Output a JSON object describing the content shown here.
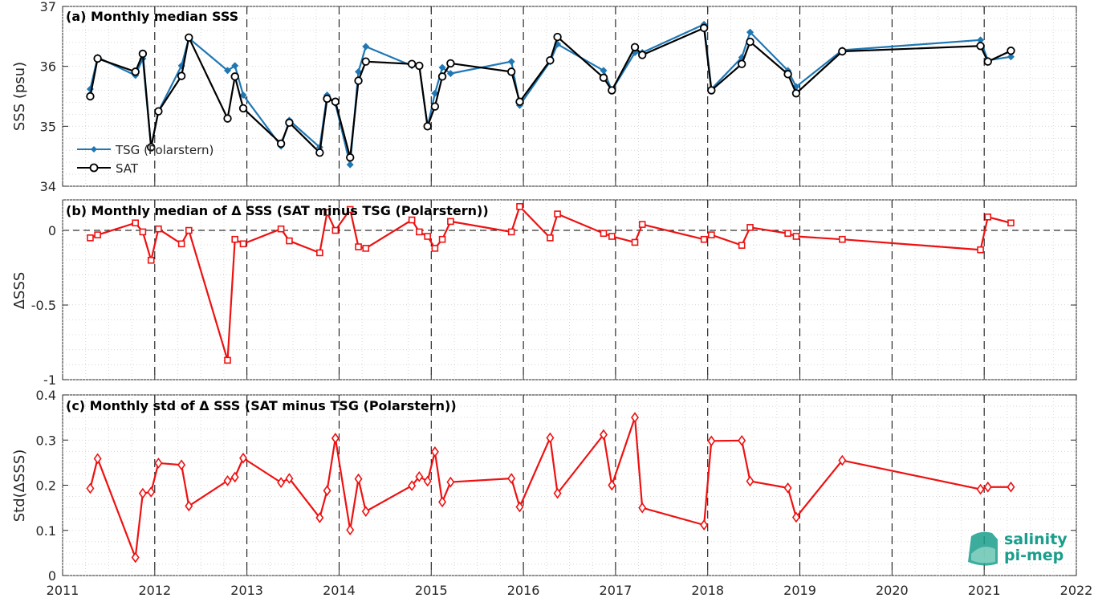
{
  "chart_data": [
    {
      "type": "line",
      "title": "(a) Monthly median SSS",
      "ylabel": "SSS (psu)",
      "xlim": [
        2011,
        2022
      ],
      "ylim": [
        34,
        37
      ],
      "yticks": [
        "34",
        "35",
        "36",
        "37"
      ],
      "grid": true,
      "legend_position": "bottom-left",
      "series": [
        {
          "name": "TSG (Polarstern)",
          "color": "#1f77b4",
          "marker": "diamond",
          "x": [
            2011.3,
            2011.38,
            2011.79,
            2011.87,
            2011.96,
            2012.04,
            2012.29,
            2012.37,
            2012.79,
            2012.87,
            2012.96,
            2013.37,
            2013.46,
            2013.79,
            2013.87,
            2013.96,
            2014.12,
            2014.21,
            2014.29,
            2014.79,
            2014.87,
            2014.96,
            2015.04,
            2015.12,
            2015.21,
            2015.87,
            2015.96,
            2016.29,
            2016.37,
            2016.87,
            2016.96,
            2017.21,
            2017.29,
            2017.96,
            2018.04,
            2018.37,
            2018.46,
            2018.87,
            2018.96,
            2019.46,
            2020.96,
            2021.04,
            2021.29
          ],
          "y": [
            35.62,
            36.15,
            35.85,
            36.13,
            34.65,
            35.25,
            36.01,
            36.47,
            35.93,
            36.01,
            35.52,
            34.67,
            35.1,
            34.65,
            35.52,
            35.38,
            34.36,
            35.91,
            36.33,
            36.01,
            36.01,
            34.99,
            35.55,
            35.98,
            35.88,
            36.08,
            35.35,
            36.08,
            36.37,
            35.93,
            35.6,
            36.23,
            36.23,
            36.7,
            35.62,
            36.15,
            36.57,
            35.93,
            35.66,
            36.27,
            36.44,
            36.1,
            36.16
          ]
        },
        {
          "name": "SAT",
          "color": "#000000",
          "marker": "circle",
          "x": [
            2011.3,
            2011.38,
            2011.79,
            2011.87,
            2011.96,
            2012.04,
            2012.29,
            2012.37,
            2012.79,
            2012.87,
            2012.96,
            2013.37,
            2013.46,
            2013.79,
            2013.87,
            2013.96,
            2014.12,
            2014.21,
            2014.29,
            2014.79,
            2014.87,
            2014.96,
            2015.04,
            2015.12,
            2015.21,
            2015.87,
            2015.96,
            2016.29,
            2016.37,
            2016.87,
            2016.96,
            2017.21,
            2017.29,
            2017.96,
            2018.04,
            2018.37,
            2018.46,
            2018.87,
            2018.96,
            2019.46,
            2020.96,
            2021.04,
            2021.29
          ],
          "y": [
            35.5,
            36.13,
            35.91,
            36.21,
            34.65,
            35.25,
            35.84,
            36.48,
            35.13,
            35.83,
            35.3,
            34.71,
            35.06,
            34.56,
            35.46,
            35.41,
            34.48,
            35.76,
            36.08,
            36.04,
            36.01,
            35.0,
            35.33,
            35.83,
            36.05,
            35.91,
            35.41,
            36.1,
            36.49,
            35.81,
            35.6,
            36.32,
            36.19,
            36.64,
            35.6,
            36.04,
            36.41,
            35.87,
            35.55,
            36.25,
            36.34,
            36.08,
            36.26
          ]
        }
      ]
    },
    {
      "type": "line",
      "title": "(b) Monthly median of Δ SSS (SAT minus TSG (Polarstern))",
      "ylabel": "ΔSSS",
      "xlim": [
        2011,
        2022
      ],
      "ylim": [
        -1,
        0.2
      ],
      "yticks": [
        "-1",
        "-0.5",
        "0"
      ],
      "grid": true,
      "zero_line": true,
      "series": [
        {
          "color": "#ee1111",
          "marker": "square",
          "x": [
            2011.3,
            2011.38,
            2011.79,
            2011.87,
            2011.96,
            2012.04,
            2012.29,
            2012.37,
            2012.79,
            2012.87,
            2012.96,
            2013.37,
            2013.46,
            2013.79,
            2013.87,
            2013.96,
            2014.12,
            2014.21,
            2014.29,
            2014.79,
            2014.87,
            2014.96,
            2015.04,
            2015.12,
            2015.21,
            2015.87,
            2015.96,
            2016.29,
            2016.37,
            2016.87,
            2016.96,
            2017.21,
            2017.29,
            2017.96,
            2018.04,
            2018.37,
            2018.46,
            2018.87,
            2018.96,
            2019.46,
            2020.96,
            2021.04,
            2021.29
          ],
          "y": [
            -0.05,
            -0.03,
            0.05,
            -0.01,
            -0.2,
            0.01,
            -0.09,
            0.0,
            -0.87,
            -0.06,
            -0.09,
            0.01,
            -0.07,
            -0.15,
            0.12,
            0.0,
            0.14,
            -0.11,
            -0.12,
            0.07,
            -0.01,
            -0.04,
            -0.12,
            -0.06,
            0.06,
            -0.01,
            0.16,
            -0.05,
            0.11,
            -0.02,
            -0.04,
            -0.08,
            0.04,
            -0.06,
            -0.03,
            -0.1,
            0.02,
            -0.02,
            -0.04,
            -0.06,
            -0.13,
            0.09,
            0.05
          ]
        }
      ]
    },
    {
      "type": "line",
      "title": "(c) Monthly std of Δ SSS (SAT minus TSG (Polarstern))",
      "ylabel": "Std(ΔSSS)",
      "xlabel": "",
      "xlim": [
        2011,
        2022
      ],
      "ylim": [
        0,
        0.4
      ],
      "yticks": [
        "0",
        "0.1",
        "0.2",
        "0.3",
        "0.4"
      ],
      "xticks": [
        "2011",
        "2012",
        "2013",
        "2014",
        "2015",
        "2016",
        "2017",
        "2018",
        "2019",
        "2020",
        "2021",
        "2022"
      ],
      "grid": true,
      "series": [
        {
          "color": "#ee1111",
          "marker": "diamond-open",
          "x": [
            2011.3,
            2011.38,
            2011.79,
            2011.87,
            2011.96,
            2012.04,
            2012.29,
            2012.37,
            2012.79,
            2012.87,
            2012.96,
            2013.37,
            2013.46,
            2013.79,
            2013.87,
            2013.96,
            2014.12,
            2014.21,
            2014.29,
            2014.79,
            2014.87,
            2014.96,
            2015.04,
            2015.12,
            2015.21,
            2015.87,
            2015.96,
            2016.29,
            2016.37,
            2016.87,
            2016.96,
            2017.21,
            2017.29,
            2017.96,
            2018.04,
            2018.37,
            2018.46,
            2018.87,
            2018.96,
            2019.46,
            2020.96,
            2021.04,
            2021.29
          ],
          "y": [
            0.193,
            0.259,
            0.04,
            0.182,
            0.185,
            0.249,
            0.245,
            0.154,
            0.21,
            0.218,
            0.26,
            0.206,
            0.215,
            0.128,
            0.188,
            0.304,
            0.101,
            0.214,
            0.142,
            0.199,
            0.219,
            0.209,
            0.274,
            0.163,
            0.207,
            0.215,
            0.152,
            0.305,
            0.182,
            0.312,
            0.2,
            0.35,
            0.15,
            0.112,
            0.298,
            0.299,
            0.209,
            0.194,
            0.129,
            0.255,
            0.191,
            0.196,
            0.196
          ]
        }
      ],
      "dashed_year_lines": [
        2012,
        2013,
        2014,
        2015,
        2016,
        2017,
        2018,
        2019,
        2020,
        2021
      ]
    }
  ],
  "logo": {
    "line1": "salinity",
    "line2": "pi-mep",
    "color": "#1a9e8c"
  }
}
